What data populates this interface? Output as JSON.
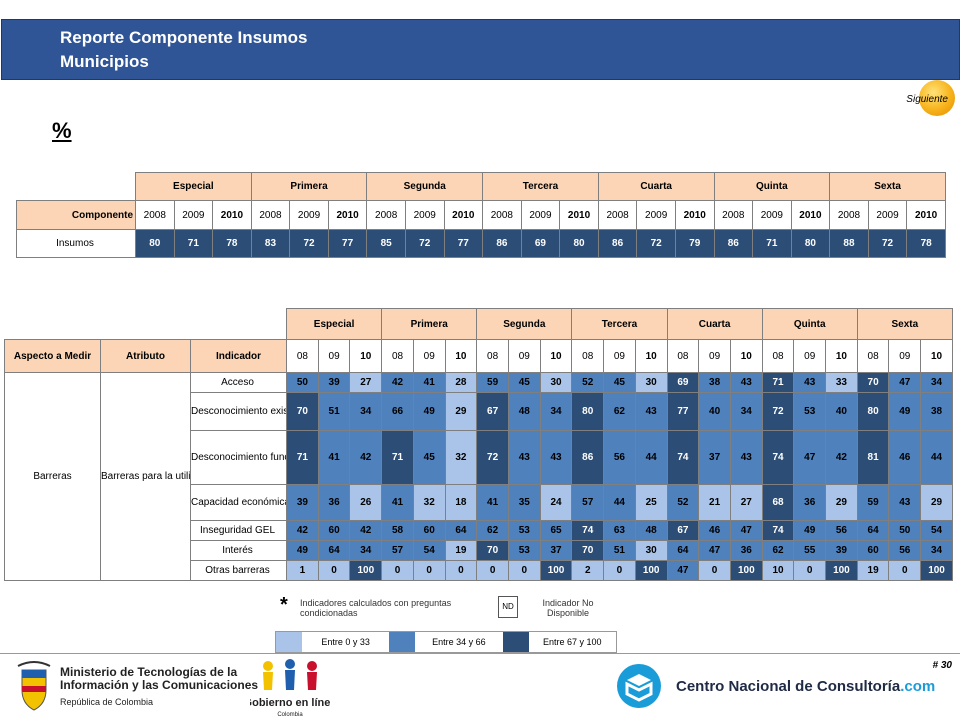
{
  "header": {
    "title_line1": "Reporte Componente Insumos",
    "title_line2": "Municipios"
  },
  "nav": {
    "next_label": "Siguiente"
  },
  "percent_label": "%",
  "categories": [
    "Especial",
    "Primera",
    "Segunda",
    "Tercera",
    "Cuarta",
    "Quinta",
    "Sexta"
  ],
  "table1": {
    "row_label_header": "Componente",
    "years": [
      "2008",
      "2009",
      "2010"
    ],
    "rows": [
      {
        "label": "Insumos",
        "values": [
          80,
          71,
          78,
          83,
          72,
          77,
          85,
          72,
          77,
          86,
          69,
          80,
          86,
          72,
          79,
          86,
          71,
          80,
          88,
          72,
          78
        ]
      }
    ]
  },
  "table2": {
    "headers": {
      "aspecto": "Aspecto a Medir",
      "atributo": "Atributo",
      "indicador": "Indicador"
    },
    "years_short": [
      "08",
      "09",
      "10"
    ],
    "aspecto_value": "Barreras",
    "atributo_value": "Barreras para la utilización del GEL",
    "rows": [
      {
        "label": "Acceso",
        "values": [
          50,
          39,
          27,
          42,
          41,
          28,
          59,
          45,
          30,
          52,
          45,
          30,
          69,
          38,
          43,
          71,
          43,
          33,
          70,
          47,
          34
        ]
      },
      {
        "label": "Desconocimiento existencia GEL",
        "values": [
          70,
          51,
          34,
          66,
          49,
          29,
          67,
          48,
          34,
          80,
          62,
          43,
          77,
          40,
          34,
          72,
          53,
          40,
          80,
          49,
          38
        ]
      },
      {
        "label": "Desconocimiento funcionamiento GEL",
        "values": [
          71,
          41,
          42,
          71,
          45,
          32,
          72,
          43,
          43,
          86,
          56,
          44,
          74,
          37,
          43,
          74,
          47,
          42,
          81,
          46,
          44
        ]
      },
      {
        "label": "Capacidad económica",
        "values": [
          39,
          36,
          26,
          41,
          32,
          18,
          41,
          35,
          24,
          57,
          44,
          25,
          52,
          21,
          27,
          68,
          36,
          29,
          59,
          43,
          29
        ]
      },
      {
        "label": "Inseguridad GEL",
        "values": [
          42,
          60,
          42,
          58,
          60,
          64,
          62,
          53,
          65,
          74,
          63,
          48,
          67,
          46,
          47,
          74,
          49,
          56,
          64,
          50,
          54
        ]
      },
      {
        "label": "Interés",
        "values": [
          49,
          64,
          34,
          57,
          54,
          19,
          70,
          53,
          37,
          70,
          51,
          30,
          64,
          47,
          36,
          62,
          55,
          39,
          60,
          56,
          34
        ]
      },
      {
        "label": "Otras barreras",
        "values": [
          1,
          0,
          100,
          0,
          0,
          0,
          0,
          0,
          100,
          2,
          0,
          100,
          47,
          0,
          100,
          10,
          0,
          100,
          19,
          0,
          100
        ]
      }
    ]
  },
  "notes": {
    "asterisk": "*",
    "conditioned": "Indicadores calculados con preguntas condicionadas",
    "nd_box": "ND",
    "nd_text": "Indicador No Disponible"
  },
  "legend": {
    "colors": {
      "low": "#a9c4e8",
      "mid": "#4f81bd",
      "high": "#2c4d75"
    },
    "items": [
      "Entre 0 y 33",
      "Entre 34 y 66",
      "Entre 67 y 100"
    ]
  },
  "footer": {
    "page_number": "# 30",
    "ministry_line1": "Ministerio de Tecnologías de la",
    "ministry_line2": "Información y las Comunicaciones",
    "ministry_sub": "República de Colombia",
    "gel_text": "Gobierno en línea",
    "gel_sub": "Colombia",
    "cnc_main": "Centro Nacional de Consultoría",
    "cnc_suffix": ".com"
  }
}
